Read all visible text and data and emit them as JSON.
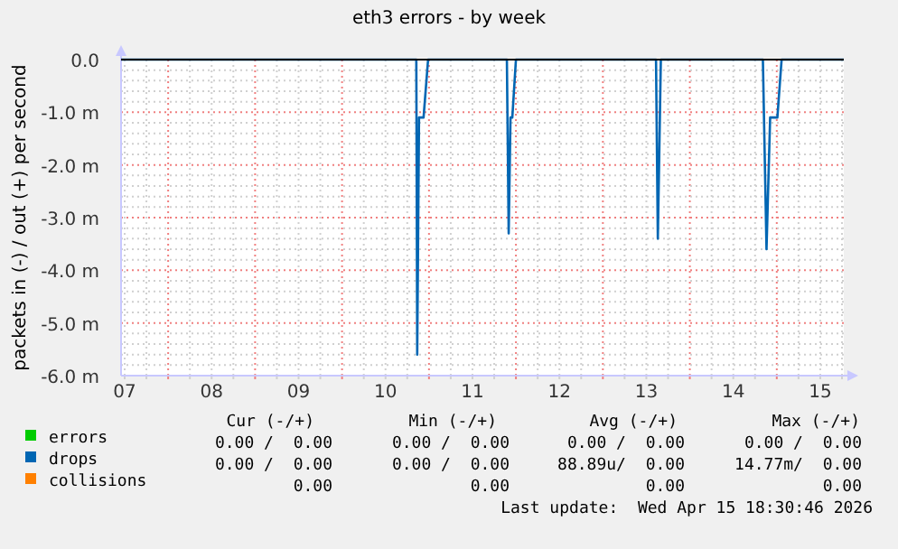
{
  "chart_data": {
    "type": "line",
    "title": "eth3 errors - by week",
    "ylabel": "packets in (-) / out (+) per second",
    "xlim": [
      "2026-04-07T11:00",
      "2026-04-15T18:30"
    ],
    "xticks": [
      {
        "value": "2026-04-07T12:00",
        "label": "07"
      },
      {
        "value": "2026-04-07T18:00",
        "label": null
      },
      {
        "value": "2026-04-08T00:00",
        "label": null
      },
      {
        "value": "2026-04-08T06:00",
        "label": null
      },
      {
        "value": "2026-04-08T12:00",
        "label": "08"
      },
      {
        "value": "2026-04-08T18:00",
        "label": null
      },
      {
        "value": "2026-04-09T00:00",
        "label": null
      },
      {
        "value": "2026-04-09T06:00",
        "label": null
      },
      {
        "value": "2026-04-09T12:00",
        "label": "09"
      },
      {
        "value": "2026-04-09T18:00",
        "label": null
      },
      {
        "value": "2026-04-10T00:00",
        "label": null
      },
      {
        "value": "2026-04-10T06:00",
        "label": null
      },
      {
        "value": "2026-04-10T12:00",
        "label": "10"
      },
      {
        "value": "2026-04-10T18:00",
        "label": null
      },
      {
        "value": "2026-04-11T00:00",
        "label": null
      },
      {
        "value": "2026-04-11T06:00",
        "label": null
      },
      {
        "value": "2026-04-11T12:00",
        "label": "11"
      },
      {
        "value": "2026-04-11T18:00",
        "label": null
      },
      {
        "value": "2026-04-12T00:00",
        "label": null
      },
      {
        "value": "2026-04-12T06:00",
        "label": null
      },
      {
        "value": "2026-04-12T12:00",
        "label": "12"
      },
      {
        "value": "2026-04-12T18:00",
        "label": null
      },
      {
        "value": "2026-04-13T00:00",
        "label": null
      },
      {
        "value": "2026-04-13T06:00",
        "label": null
      },
      {
        "value": "2026-04-13T12:00",
        "label": "13"
      },
      {
        "value": "2026-04-13T18:00",
        "label": null
      },
      {
        "value": "2026-04-14T00:00",
        "label": null
      },
      {
        "value": "2026-04-14T06:00",
        "label": null
      },
      {
        "value": "2026-04-14T12:00",
        "label": "14"
      },
      {
        "value": "2026-04-14T18:00",
        "label": null
      },
      {
        "value": "2026-04-15T00:00",
        "label": null
      },
      {
        "value": "2026-04-15T06:00",
        "label": null
      },
      {
        "value": "2026-04-15T12:00",
        "label": "15"
      },
      {
        "value": "2026-04-15T18:00",
        "label": null
      }
    ],
    "ylim": [
      -6,
      0
    ],
    "yticks": [
      {
        "value": 0,
        "label": "0.0"
      },
      {
        "value": -0.2,
        "label": null
      },
      {
        "value": -0.4,
        "label": null
      },
      {
        "value": -0.6,
        "label": null
      },
      {
        "value": -0.8,
        "label": null
      },
      {
        "value": -1,
        "label": "-1.0 m"
      },
      {
        "value": -1.2,
        "label": null
      },
      {
        "value": -1.4,
        "label": null
      },
      {
        "value": -1.6,
        "label": null
      },
      {
        "value": -1.8,
        "label": null
      },
      {
        "value": -2,
        "label": "-2.0 m"
      },
      {
        "value": -2.2,
        "label": null
      },
      {
        "value": -2.4,
        "label": null
      },
      {
        "value": -2.6,
        "label": null
      },
      {
        "value": -2.8,
        "label": null
      },
      {
        "value": -3,
        "label": "-3.0 m"
      },
      {
        "value": -3.2,
        "label": null
      },
      {
        "value": -3.4,
        "label": null
      },
      {
        "value": -3.6,
        "label": null
      },
      {
        "value": -3.8,
        "label": null
      },
      {
        "value": -4,
        "label": "-4.0 m"
      },
      {
        "value": -4.2,
        "label": null
      },
      {
        "value": -4.4,
        "label": null
      },
      {
        "value": -4.6,
        "label": null
      },
      {
        "value": -4.8,
        "label": null
      },
      {
        "value": -5,
        "label": "-5.0 m"
      },
      {
        "value": -5.2,
        "label": null
      },
      {
        "value": -5.4,
        "label": null
      },
      {
        "value": -5.6,
        "label": null
      },
      {
        "value": -5.8,
        "label": null
      },
      {
        "value": -6,
        "label": "-6.0 m"
      }
    ],
    "grid": true,
    "legend": "bottom",
    "ref_lines": [
      {
        "axis": "y",
        "value": 0,
        "color": "#000000"
      }
    ],
    "series": [
      {
        "name": "errors",
        "color": "#00cc00"
      },
      {
        "name": "drops",
        "color": "#0066b3",
        "x": [
          "2026-04-07T11:00",
          "2026-04-10T20:30",
          "2026-04-10T20:45",
          "2026-04-10T21:15",
          "2026-04-10T22:30",
          "2026-04-10T23:45",
          "2026-04-11T21:30",
          "2026-04-11T22:00",
          "2026-04-11T22:30",
          "2026-04-11T23:00",
          "2026-04-12T00:00",
          "2026-04-13T14:40",
          "2026-04-13T15:10",
          "2026-04-13T16:00",
          "2026-04-14T20:10",
          "2026-04-14T21:10",
          "2026-04-14T22:10",
          "2026-04-15T00:10",
          "2026-04-15T01:20",
          "2026-04-15T18:30"
        ],
        "values": [
          0,
          0,
          -5.6,
          -1.1,
          -1.1,
          0,
          0,
          -3.3,
          -1.1,
          -1.1,
          0,
          0,
          -3.4,
          0,
          0,
          -3.6,
          -1.1,
          -1.1,
          0,
          0
        ]
      },
      {
        "name": "collisions",
        "color": "#ff8000"
      }
    ],
    "annotations": [
      "Cur (-/+)",
      "Min (-/+)",
      "Avg (-/+)",
      "Max (-/+)",
      "0.00 /  0.00",
      "0.00 /  0.00",
      "0.00 /  0.00",
      "0.00 /  0.00",
      "0.00 /  0.00",
      "0.00 /  0.00",
      "88.89u/  0.00",
      "14.77m/  0.00",
      "0.00",
      "0.00",
      "0.00",
      "0.00",
      "Last update:  Wed Apr 15 18:30:46 2026"
    ]
  }
}
